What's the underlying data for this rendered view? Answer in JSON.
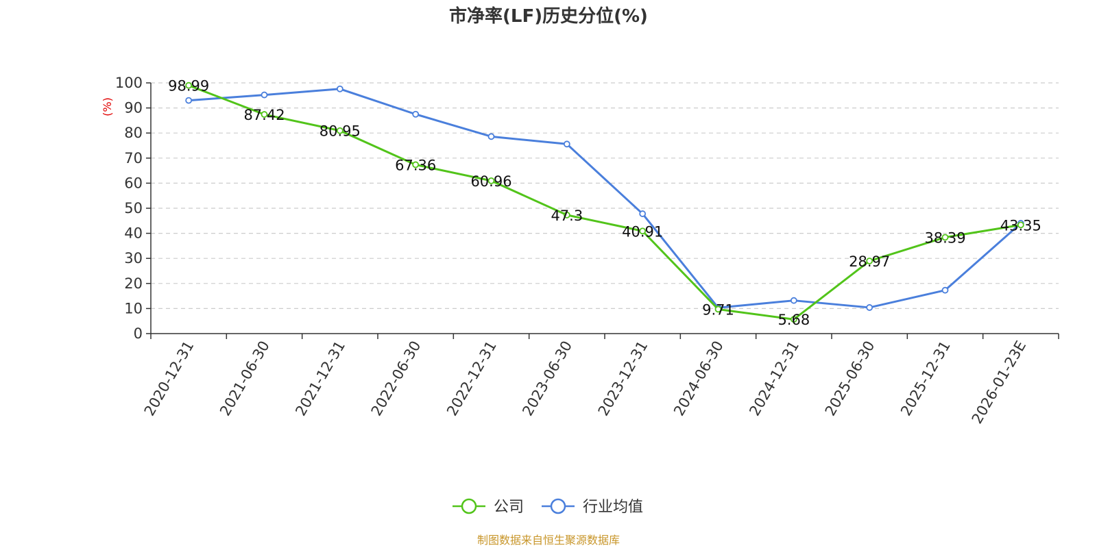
{
  "chart_data": {
    "type": "line",
    "title": "市净率(LF)历史分位(%)",
    "ylabel": "(%)",
    "xlabel": "",
    "ylim": [
      0,
      100
    ],
    "yticks": [
      0,
      10,
      20,
      30,
      40,
      50,
      60,
      70,
      80,
      90,
      100
    ],
    "categories": [
      "2020-12-31",
      "2021-06-30",
      "2021-12-31",
      "2022-06-30",
      "2022-12-31",
      "2023-06-30",
      "2023-12-31",
      "2024-06-30",
      "2024-12-31",
      "2025-06-30",
      "2025-12-31",
      "2026-01-23E"
    ],
    "series": [
      {
        "name": "公司",
        "color": "#52c41a",
        "values": [
          98.99,
          87.42,
          80.95,
          67.36,
          60.96,
          47.3,
          40.91,
          9.71,
          5.68,
          28.97,
          38.39,
          43.35
        ],
        "labels": [
          "98.99",
          "87.42",
          "80.95",
          "67.36",
          "60.96",
          "47.3",
          "40.91",
          "9.71",
          "5.68",
          "28.97",
          "38.39",
          "43.35"
        ]
      },
      {
        "name": "行业均值",
        "color": "#4a7fdc",
        "values": [
          93.0,
          95.2,
          97.6,
          87.5,
          78.6,
          75.6,
          47.8,
          10.3,
          13.2,
          10.4,
          17.3,
          44.0
        ]
      }
    ],
    "grid": true,
    "legend_position": "bottom-center"
  },
  "colors": {
    "unit_label": "#e00000",
    "source": "#c8962a",
    "axis": "#333333",
    "grid": "#cccccc"
  },
  "source_text": "制图数据来自恒生聚源数据库"
}
